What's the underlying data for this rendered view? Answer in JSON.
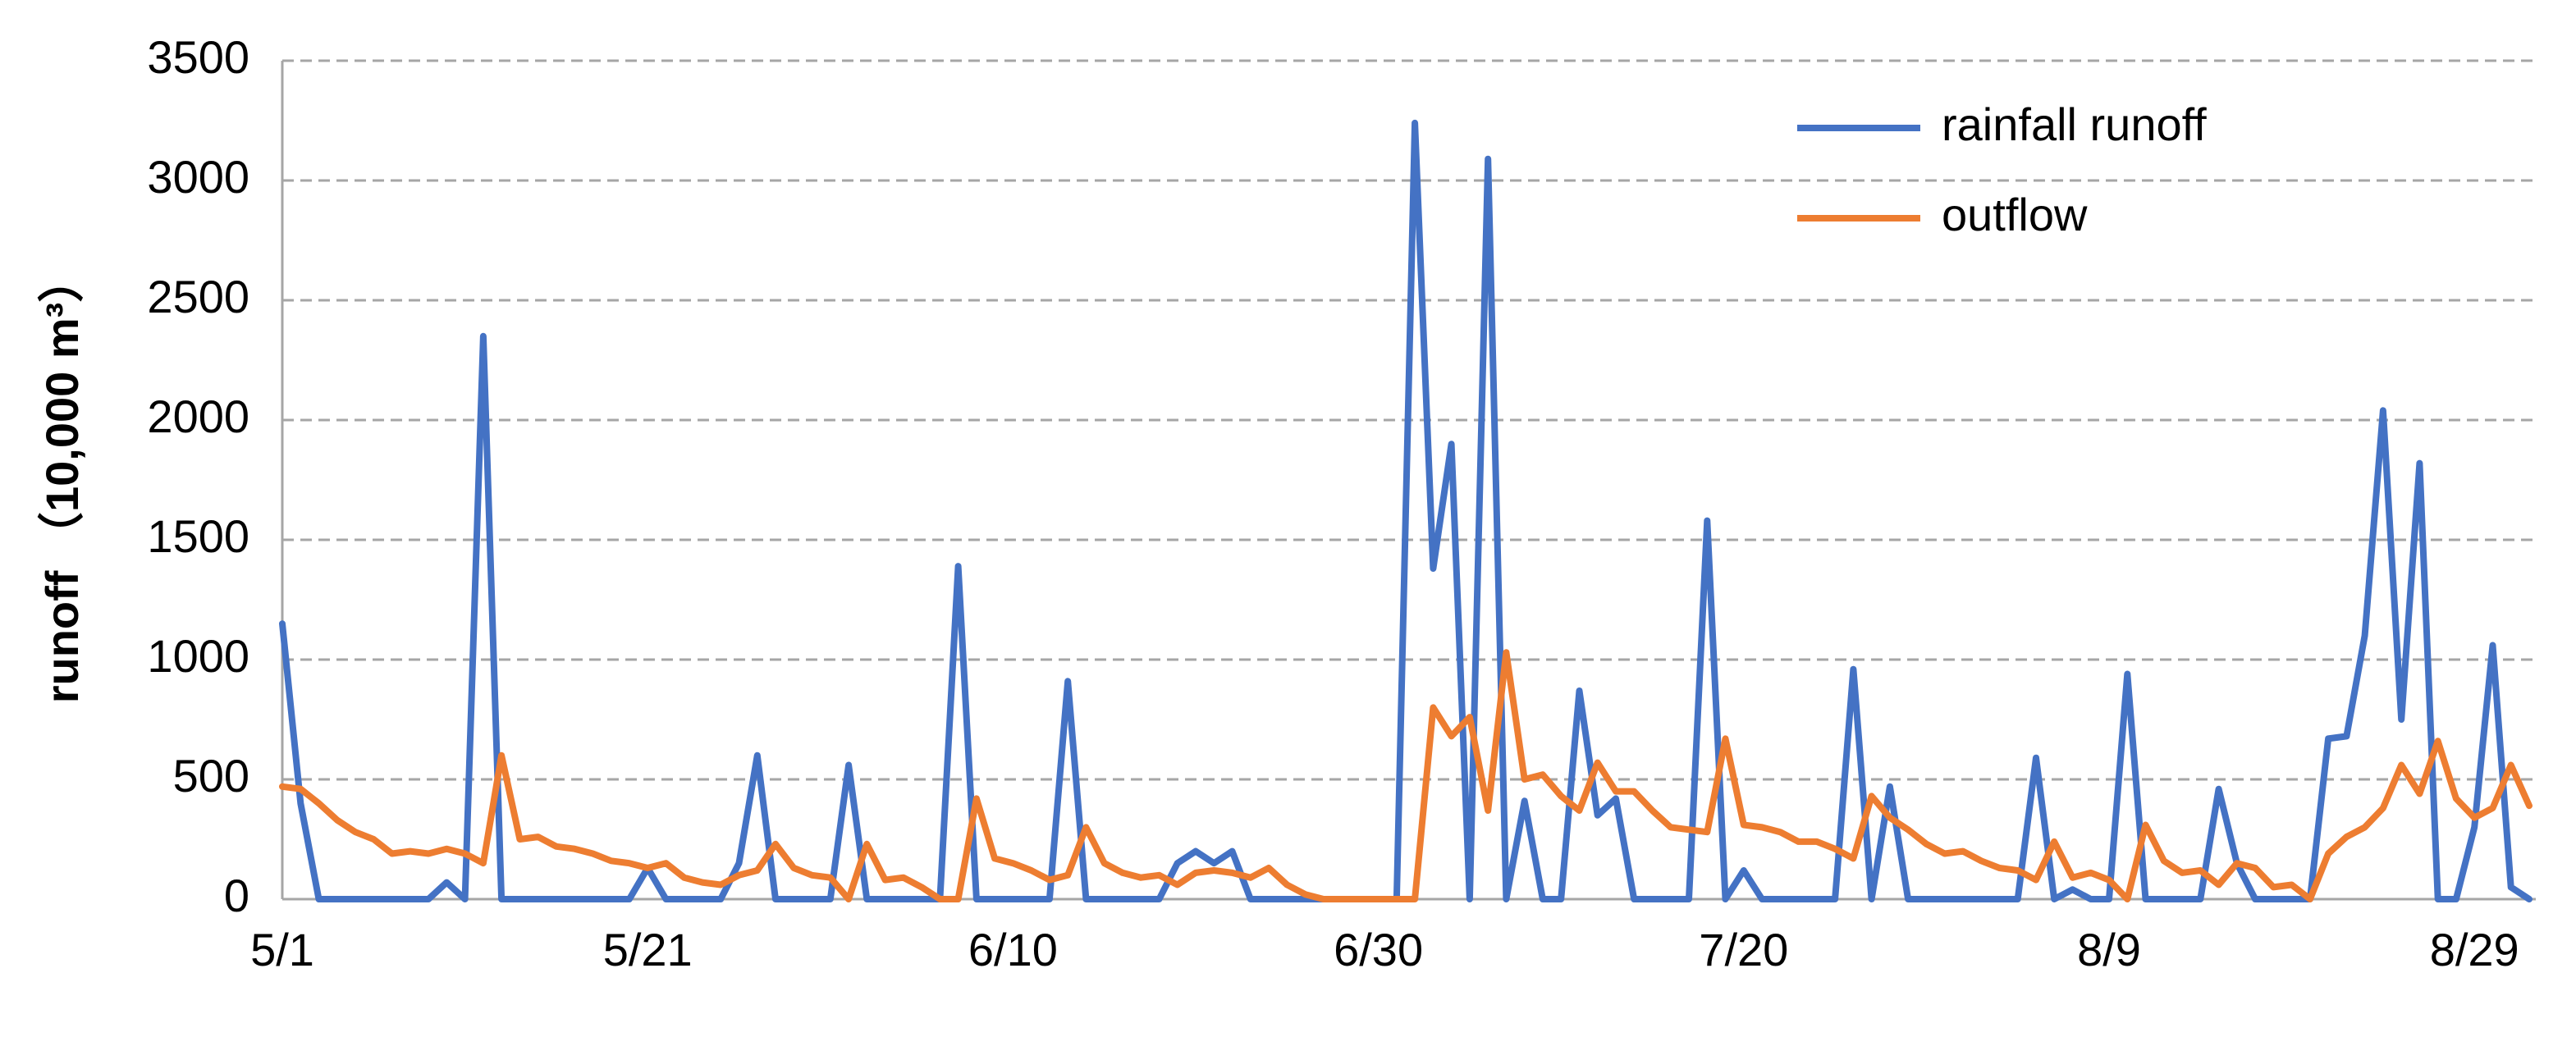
{
  "chart_data": {
    "type": "line",
    "categories": [
      "5/1",
      null,
      null,
      null,
      null,
      null,
      null,
      null,
      null,
      null,
      null,
      null,
      null,
      null,
      null,
      null,
      null,
      null,
      null,
      null,
      "5/21",
      null,
      null,
      null,
      null,
      null,
      null,
      null,
      null,
      null,
      null,
      null,
      null,
      null,
      null,
      null,
      null,
      null,
      null,
      null,
      "6/10",
      null,
      null,
      null,
      null,
      null,
      null,
      null,
      null,
      null,
      null,
      null,
      null,
      null,
      null,
      null,
      null,
      null,
      null,
      null,
      "6/30",
      null,
      null,
      null,
      null,
      null,
      null,
      null,
      null,
      null,
      null,
      null,
      null,
      null,
      null,
      null,
      null,
      null,
      null,
      null,
      "7/20",
      null,
      null,
      null,
      null,
      null,
      null,
      null,
      null,
      null,
      null,
      null,
      null,
      null,
      null,
      null,
      null,
      null,
      null,
      null,
      "8/9",
      null,
      null,
      null,
      null,
      null,
      null,
      null,
      null,
      null,
      null,
      null,
      null,
      null,
      null,
      null,
      null,
      null,
      null,
      null,
      "8/29",
      null,
      null,
      null
    ],
    "series": [
      {
        "name": "rainfall runoff",
        "color": "#4472c4",
        "values": [
          1150,
          400,
          0,
          0,
          0,
          0,
          0,
          0,
          0,
          70,
          0,
          2350,
          0,
          0,
          0,
          0,
          0,
          0,
          0,
          0,
          130,
          0,
          0,
          0,
          0,
          150,
          600,
          0,
          0,
          0,
          0,
          560,
          0,
          0,
          0,
          0,
          0,
          1390,
          0,
          0,
          0,
          0,
          0,
          910,
          0,
          0,
          0,
          0,
          0,
          150,
          200,
          150,
          200,
          0,
          0,
          0,
          0,
          0,
          0,
          0,
          0,
          0,
          3240,
          1380,
          1900,
          0,
          3090,
          0,
          410,
          0,
          0,
          870,
          350,
          420,
          0,
          0,
          0,
          0,
          1580,
          0,
          120,
          0,
          0,
          0,
          0,
          0,
          960,
          0,
          470,
          0,
          0,
          0,
          0,
          0,
          0,
          0,
          590,
          0,
          40,
          0,
          0,
          940,
          0,
          0,
          0,
          0,
          460,
          150,
          0,
          0,
          0,
          0,
          670,
          680,
          1100,
          2040,
          750,
          1820,
          0,
          0,
          300,
          1060,
          50,
          0
        ]
      },
      {
        "name": "outflow",
        "color": "#ed7d31",
        "values": [
          470,
          460,
          400,
          330,
          280,
          250,
          190,
          200,
          190,
          210,
          190,
          150,
          600,
          250,
          260,
          220,
          210,
          190,
          160,
          150,
          130,
          150,
          90,
          70,
          60,
          100,
          120,
          230,
          130,
          100,
          90,
          0,
          230,
          80,
          90,
          50,
          0,
          0,
          420,
          170,
          150,
          120,
          80,
          100,
          300,
          150,
          110,
          90,
          100,
          60,
          110,
          120,
          110,
          90,
          130,
          60,
          20,
          0,
          0,
          0,
          0,
          0,
          0,
          800,
          680,
          760,
          370,
          1030,
          500,
          520,
          430,
          370,
          570,
          450,
          450,
          370,
          300,
          290,
          280,
          670,
          310,
          300,
          280,
          240,
          240,
          210,
          170,
          430,
          340,
          290,
          230,
          190,
          200,
          160,
          130,
          120,
          80,
          240,
          90,
          110,
          80,
          0,
          310,
          160,
          110,
          120,
          60,
          150,
          130,
          50,
          60,
          0,
          190,
          260,
          300,
          380,
          560,
          440,
          660,
          420,
          340,
          380,
          560,
          390
        ]
      }
    ],
    "y_label": "runoff （10,000 m³）",
    "ylim": [
      0,
      3500
    ],
    "yticks": [
      0,
      500,
      1000,
      1500,
      2000,
      2500,
      3000,
      3500
    ],
    "grid": true,
    "legend": "upper right"
  }
}
